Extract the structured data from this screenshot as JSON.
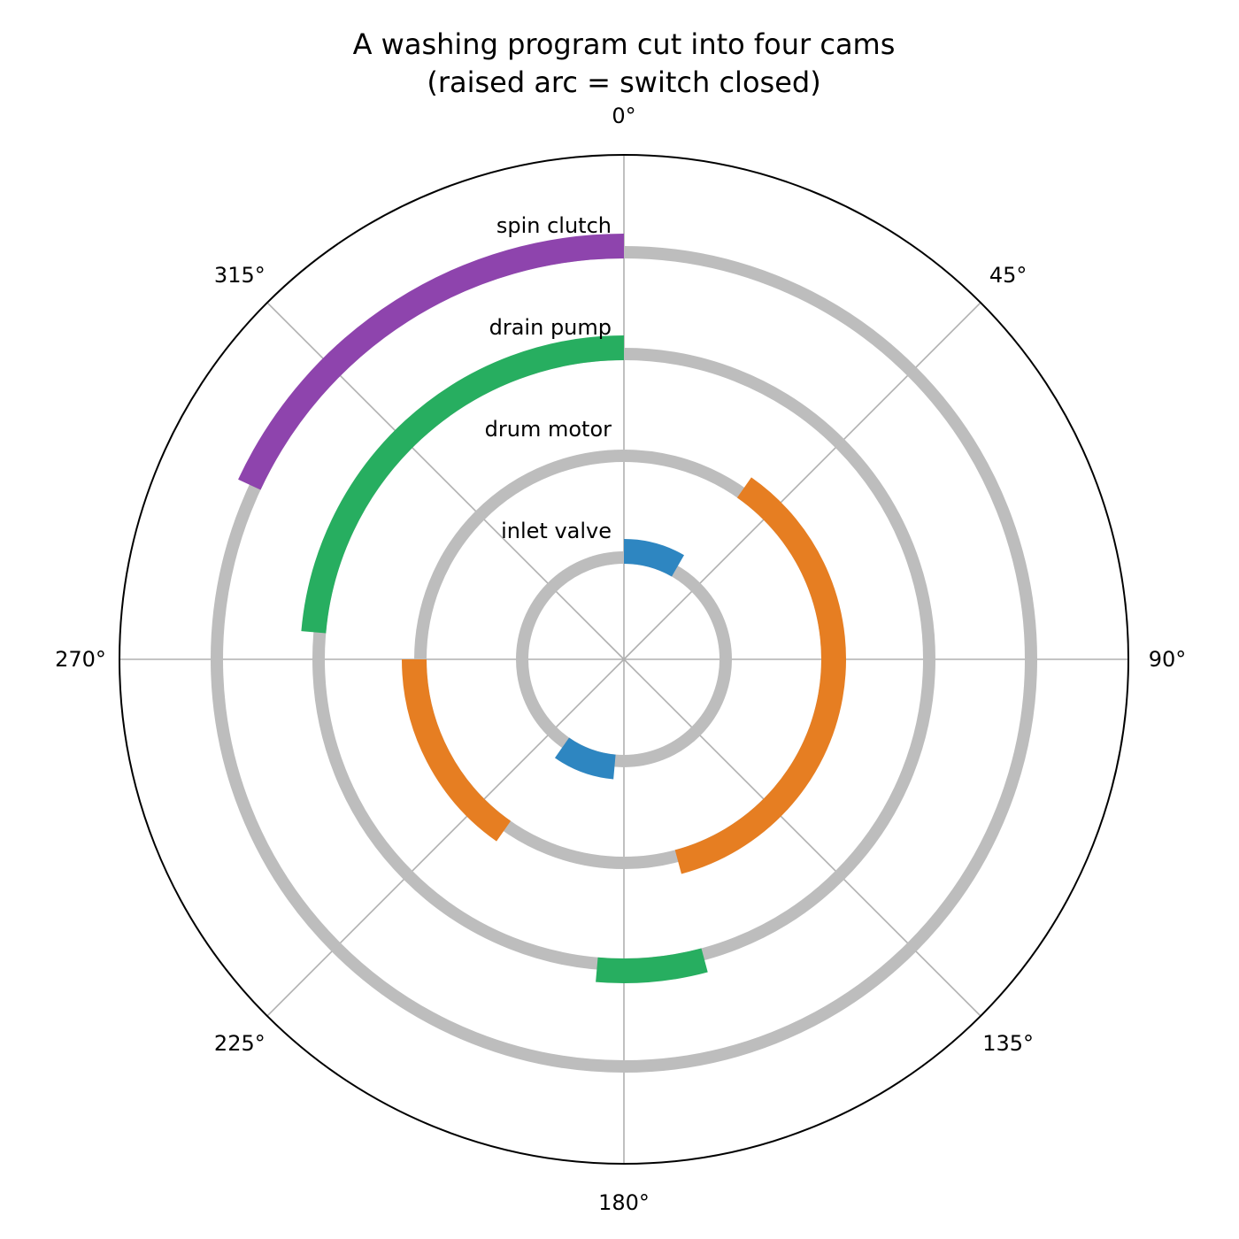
{
  "chart_data": {
    "type": "polar-cam-timing",
    "title": "A washing program cut into four cams",
    "subtitle": "(raised arc = switch closed)",
    "angular_axis": {
      "zero_location": "top",
      "direction": "clockwise",
      "ticks": [
        {
          "value": 0,
          "label": "0°"
        },
        {
          "value": 45,
          "label": "45°"
        },
        {
          "value": 90,
          "label": "90°"
        },
        {
          "value": 135,
          "label": "135°"
        },
        {
          "value": 180,
          "label": "180°"
        },
        {
          "value": 225,
          "label": "225°"
        },
        {
          "value": 270,
          "label": "270°"
        },
        {
          "value": 315,
          "label": "315°"
        }
      ]
    },
    "grid": true,
    "base_ring_color": "#bdbdbd",
    "series": [
      {
        "name": "inlet valve",
        "color": "#2e86c1",
        "closed_ranges": [
          [
            0,
            30
          ],
          [
            185,
            215
          ]
        ]
      },
      {
        "name": "drum motor",
        "color": "#e67e22",
        "closed_ranges": [
          [
            35,
            165
          ],
          [
            215,
            270
          ]
        ]
      },
      {
        "name": "drain pump",
        "color": "#27ae60",
        "closed_ranges": [
          [
            165,
            185
          ],
          [
            275,
            360
          ]
        ]
      },
      {
        "name": "spin clutch",
        "color": "#8e44ad",
        "closed_ranges": [
          [
            295,
            360
          ]
        ]
      }
    ]
  }
}
